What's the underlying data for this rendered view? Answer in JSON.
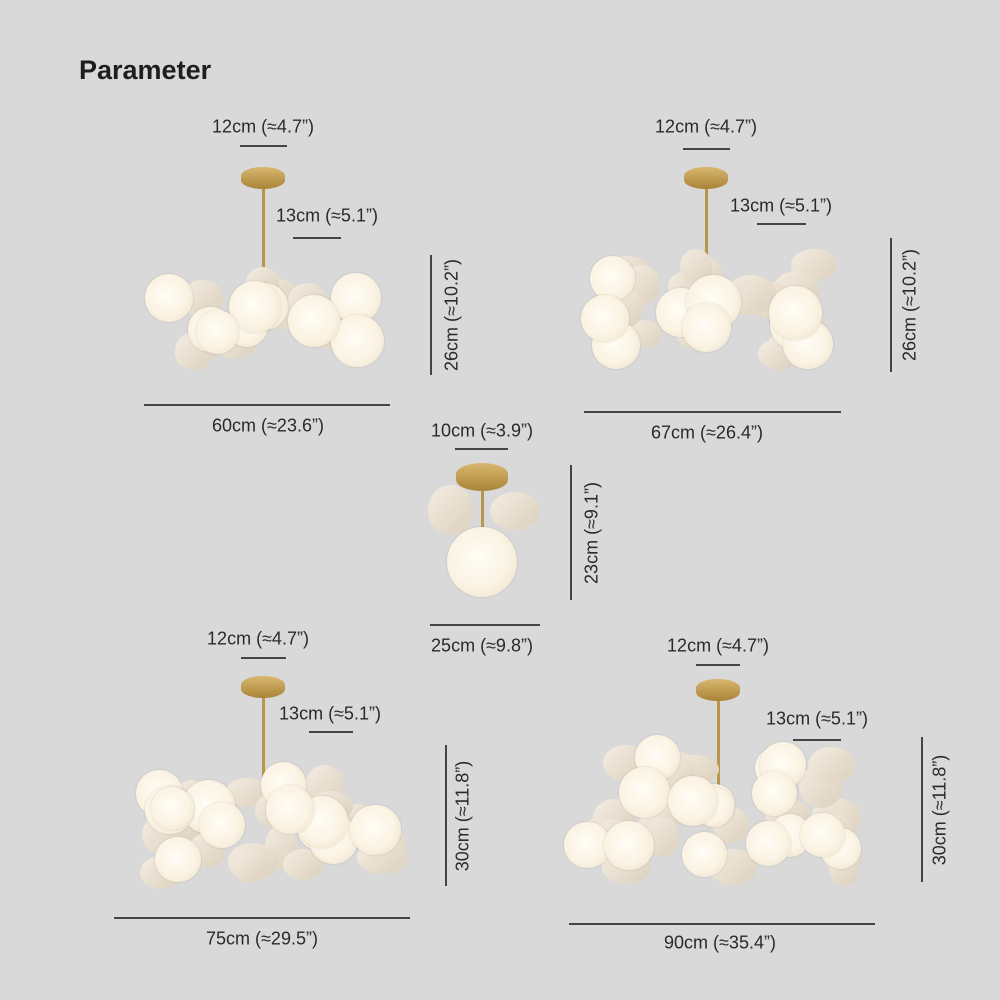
{
  "title": "Parameter",
  "lamps": [
    {
      "canopy": "12cm (≈4.7”)",
      "rod": "13cm (≈5.1”)",
      "height": "26cm (≈10.2”)",
      "width": "60cm (≈23.6”)"
    },
    {
      "canopy": "12cm (≈4.7”)",
      "rod": "13cm (≈5.1”)",
      "height": "26cm (≈10.2”)",
      "width": "67cm (≈26.4”)"
    },
    {
      "canopy": "10cm (≈3.9”)",
      "height": "23cm (≈9.1”)",
      "width": "25cm (≈9.8”)"
    },
    {
      "canopy": "12cm (≈4.7”)",
      "rod": "13cm (≈5.1”)",
      "height": "30cm (≈11.8”)",
      "width": "75cm (≈29.5”)"
    },
    {
      "canopy": "12cm (≈4.7”)",
      "rod": "13cm (≈5.1”)",
      "height": "30cm (≈11.8”)",
      "width": "90cm (≈35.4”)"
    }
  ],
  "colors": {
    "background": "#d9d9d9",
    "brass": "#b8964a",
    "globe": "#fbf3e3"
  }
}
